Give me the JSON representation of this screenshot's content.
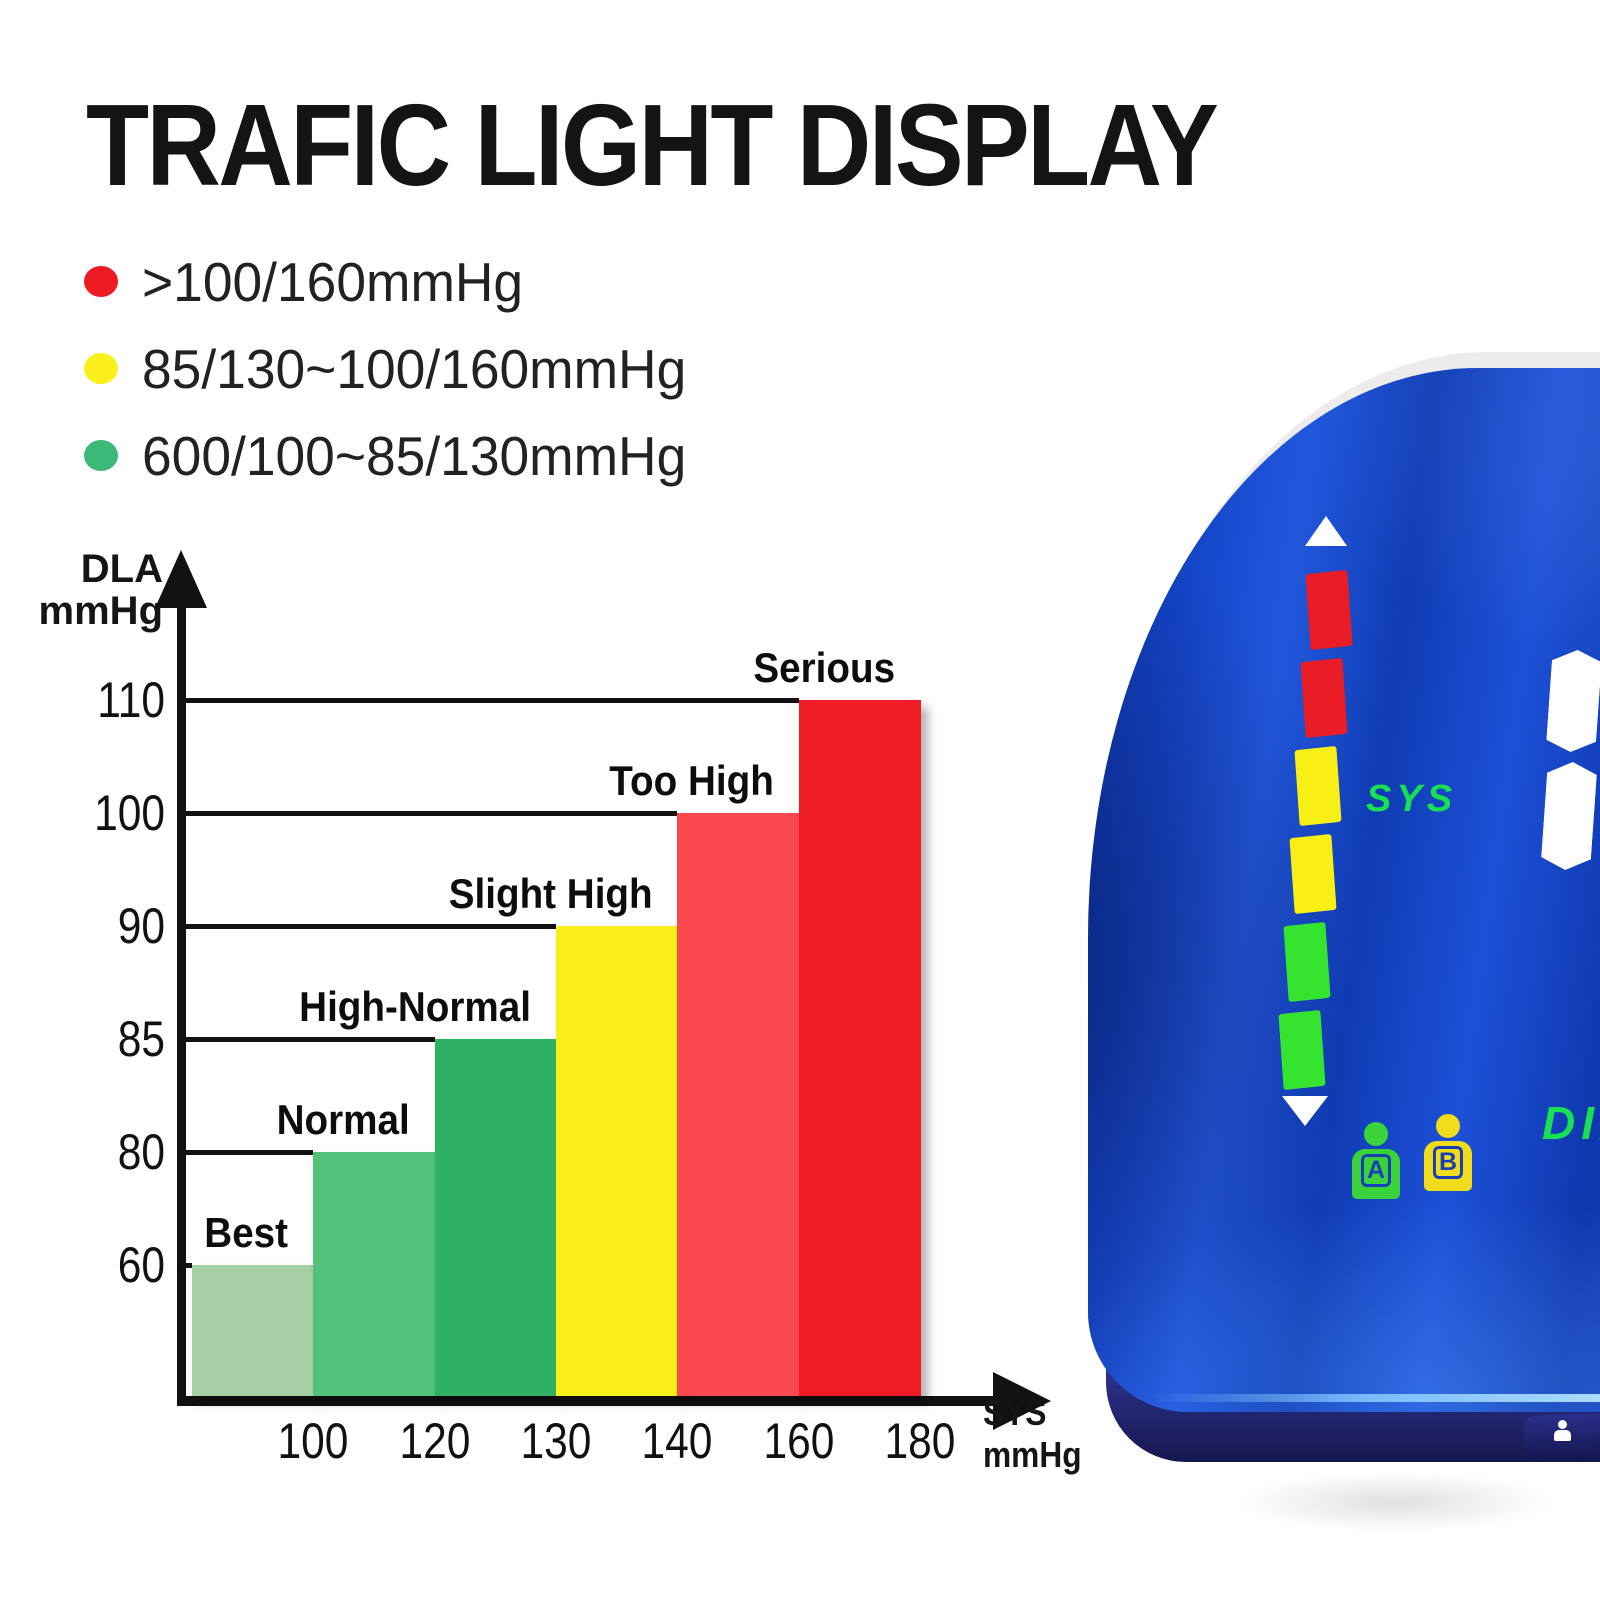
{
  "title": "TRAFIC LIGHT DISPLAY",
  "legend": {
    "items": [
      {
        "dot_color": "#ed1c24",
        "label": ">100/160mmHg"
      },
      {
        "dot_color": "#f8ef1d",
        "label": "85/130~100/160mmHg"
      },
      {
        "dot_color": "#3cb878",
        "label": "600/100~85/130mmHg"
      }
    ]
  },
  "chart_data": {
    "type": "bar",
    "title": "TRAFIC LIGHT DISPLAY",
    "categories": [
      "Best",
      "Normal",
      "High-Normal",
      "Slight High",
      "Too High",
      "Serious"
    ],
    "values": [
      60,
      80,
      85,
      90,
      100,
      110
    ],
    "bar_colors": [
      "#a5cfa4",
      "#53c07b",
      "#2fb163",
      "#f7ee1a",
      "#f9494f",
      "#ee1c24"
    ],
    "y_axis": {
      "label": "DLA",
      "unit": "mmHg",
      "ticks": [
        110,
        100,
        90,
        85,
        80,
        60
      ]
    },
    "x_axis": {
      "label": "SYS",
      "unit": "mmHg",
      "ticks": [
        100,
        120,
        130,
        140,
        160,
        180
      ]
    },
    "grid": true,
    "legend_position": "none"
  },
  "device": {
    "sys_label": "SYS",
    "dia_label": "DIA",
    "label_color": "#17e052",
    "indicator_segments": [
      "#ea1c26",
      "#ea1c26",
      "#f8f014",
      "#f8f014",
      "#35e42f",
      "#35e42f"
    ],
    "users": [
      {
        "label": "A",
        "color": "#3bd33b"
      },
      {
        "label": "B",
        "color": "#f1dc1c"
      }
    ]
  }
}
